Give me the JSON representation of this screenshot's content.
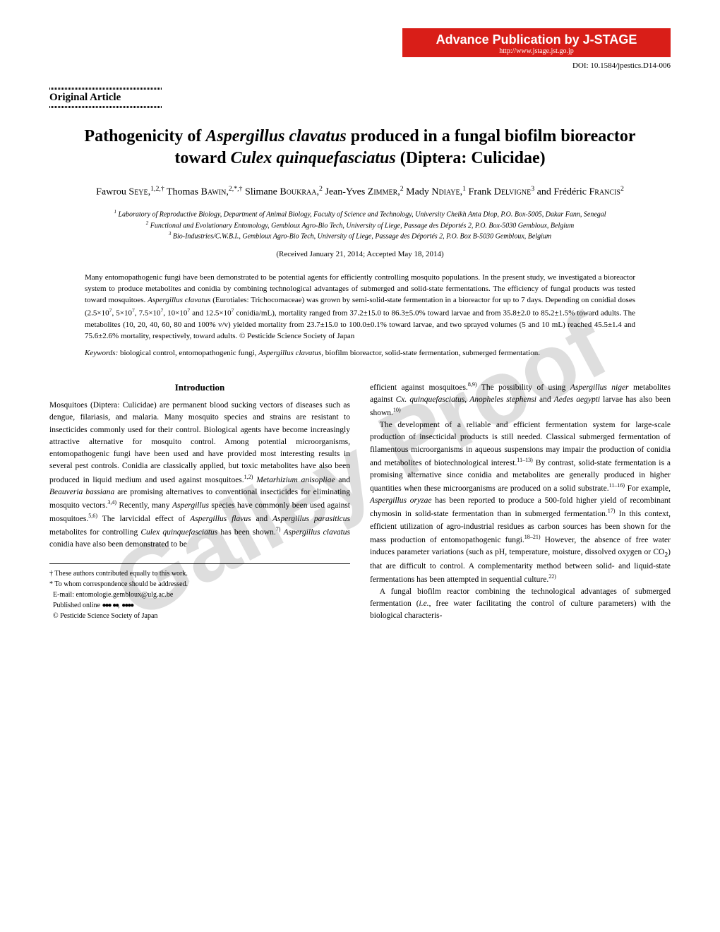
{
  "watermark": "Galley Proof",
  "banner": {
    "line1": "Advance Publication by J-STAGE",
    "line2": "http://www.jstage.jst.go.jp",
    "bg_color": "#d91e18",
    "text_color": "#ffffff"
  },
  "doi": "DOI: 10.1584/jpestics.D14-006",
  "article_type": "Original Article",
  "title_html": "Pathogenicity of <em>Aspergillus clavatus</em> produced in a fungal biofilm bioreactor toward <em>Culex quinquefasciatus</em> (Diptera: Culicidae)",
  "authors_html": "Fawrou S<span class='sc'>eye</span>,<sup>1,2,†</sup> Thomas B<span class='sc'>awin</span>,<sup>2,*,†</sup> Slimane B<span class='sc'>oukraa</span>,<sup>2</sup> Jean-Yves Z<span class='sc'>immer</span>,<sup>2</sup> Mady N<span class='sc'>diaye</span>,<sup>1</sup> Frank D<span class='sc'>elvigne</span><sup>3</sup> and Frédéric F<span class='sc'>rancis</span><sup>2</sup>",
  "affiliations_html": "<sup>1</sup> Laboratory of Reproductive Biology, Department of Animal Biology, Faculty of Science and Technology, University Cheikh Anta Diop, P.O. Box-5005, Dakar Fann, Senegal<br><sup>2</sup> Functional and Evolutionary Entomology, Gembloux Agro-Bio Tech, University of Liege, Passage des Déportés 2, P.O. Box-5030 Gembloux, Belgium<br><sup>3</sup> Bio-Industries/C.W.B.I., Gembloux Agro-Bio Tech, University of Liege, Passage des Déportés 2, P.O. Box B-5030 Gembloux, Belgium",
  "received": "(Received January 21, 2014; Accepted May 18, 2014)",
  "abstract_html": "Many entomopathogenic fungi have been demonstrated to be potential agents for efficiently controlling mosquito populations. In the present study, we investigated a bioreactor system to produce metabolites and conidia by combining technological advantages of submerged and solid-state fermentations. The efficiency of fungal products was tested toward mosquitoes. <em>Aspergillus clavatus</em> (Eurotiales: Trichocomaceae) was grown by semi-solid-state fermentation in a bioreactor for up to 7 days. Depending on conidial doses (2.5×10<sup>7</sup>, 5×10<sup>7</sup>, 7.5×10<sup>7</sup>, 10×10<sup>7</sup> and 12.5×10<sup>7</sup> conidia/mL), mortality ranged from 37.2±15.0 to 86.3±5.0% toward larvae and from 35.8±2.0 to 85.2±1.5% toward adults. The metabolites (10, 20, 40, 60, 80 and 100% v/v) yielded mortality from 23.7±15.0 to 100.0±0.1% toward larvae, and two sprayed volumes (5 and 10 mL) reached 45.5±1.4 and 75.6±2.6% mortality, respectively, toward adults.   © Pesticide Science Society of Japan",
  "keywords_label": "Keywords:",
  "keywords_text_html": "biological control, entomopathogenic fungi, <em>Aspergillus clavatus</em>, biofilm bioreactor, solid-state fermentation, submerged fermentation.",
  "introduction_heading": "Introduction",
  "col1_html": "<p class='noindent'>Mosquitoes (Diptera: Culicidae) are permanent blood sucking vectors of diseases such as dengue, filariasis, and malaria. Many mosquito species and strains are resistant to insecticides commonly used for their control. Biological agents have become increasingly attractive alternative for mosquito control. Among potential microorganisms, entomopathogenic fungi have been used and have provided most interesting results in several pest controls. Conidia are classically applied, but toxic metabolites have also been produced in liquid medium and used against mosquitoes.<sup>1,2)</sup> <em>Metarhizium anisopliae</em> and <em>Beauveria bassiana</em> are promising alternatives to conventional insecticides for eliminating mosquito vectors.<sup>3,4)</sup> Recently, many <em>Aspergillus</em> species have commonly been used against mosquitoes.<sup>5,6)</sup> The larvicidal effect of <em>Aspergillus flavus</em> and <em>Aspergillus parasiticus</em> metabolites for controlling <em>Culex quinquefasciatus</em> has been shown.<sup>7)</sup> <em>Aspergillus clavatus</em> conidia have also been demonstrated to be</p>",
  "col2_html": "<p class='noindent'>efficient against mosquitoes.<sup>8,9)</sup> The possibility of using <em>Aspergillus niger</em> metabolites against <em>Cx. quinquefasciatus</em>, <em>Anopheles stephensi</em> and <em>Aedes aegypti</em> larvae has also been shown.<sup>10)</sup></p><p>The development of a reliable and efficient fermentation system for large-scale production of insecticidal products is still needed. Classical submerged fermentation of filamentous microorganisms in aqueous suspensions may impair the production of conidia and metabolites of biotechnological interest.<sup>11–13)</sup> By contrast, solid-state fermentation is a promising alternative since conidia and metabolites are generally produced in higher quantities when these microorganisms are produced on a solid substrate.<sup>11–16)</sup> For example, <em>Aspergillus oryzae</em> has been reported to produce a 500-fold higher yield of recombinant chymosin in solid-state fermentation than in submerged fermentation.<sup>17)</sup> In this context, efficient utilization of agro-industrial residues as carbon sources has been shown for the mass production of entomopathogenic fungi.<sup>18–21)</sup> However, the absence of free water induces parameter variations (such as pH, temperature, moisture, dissolved oxygen or CO<sub>2</sub>) that are difficult to control. A complementarity method between solid- and liquid-state fermentations has been attempted in sequential culture.<sup>22)</sup></p><p>A fungal biofilm reactor combining the technological advantages of submerged fermentation (<em>i.e.</em>, free water facilitating the control of culture parameters) with the biological characteris-</p>",
  "footnotes_html": "† These authors contributed equally to this work.<br>* To whom correspondence should be addressed.<br>&nbsp;&nbsp;E-mail: entomologie.gembloux@ulg.ac.be<br>&nbsp;&nbsp;Published online <span class='dots'>●●●</span> <span class='dots'>●●</span>, <span class='dots'>●●●●</span><br>&nbsp;&nbsp;© Pesticide Science Society of Japan"
}
